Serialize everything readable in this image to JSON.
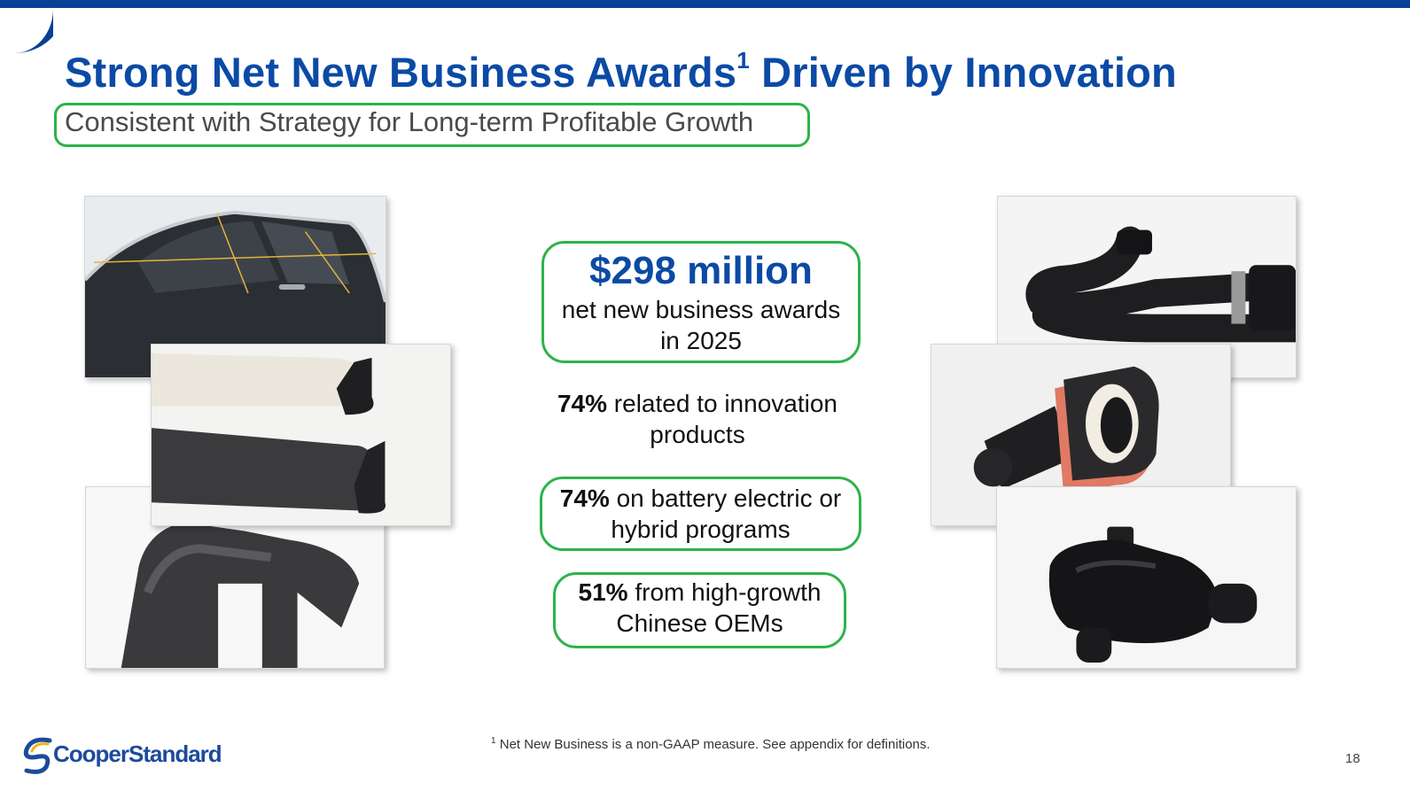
{
  "slide": {
    "title_main": "Strong Net New Business Awards",
    "title_sup": "1",
    "title_end": " Driven by Innovation",
    "subtitle": "Consistent with Strategy for Long-term Profitable Growth"
  },
  "stats": {
    "amount": "$298 million",
    "amount_desc_1": "net new business awards",
    "amount_desc_2": "in 2025",
    "innovation_pct": "74%",
    "innovation_text_1": " related to innovation",
    "innovation_text_2": "products",
    "battery_pct": "74%",
    "battery_text_1": " on battery electric or",
    "battery_text_2": "hybrid programs",
    "china_pct": "51%",
    "china_text_1": " from high-growth",
    "china_text_2": "Chinese OEMs"
  },
  "footer": {
    "footnote_sup": "1",
    "footnote": " Net New Business is a non-GAAP measure. See appendix for definitions.",
    "page_number": "18",
    "logo_text": "CooperStandard"
  },
  "colors": {
    "brand_blue": "#0b4aa5",
    "band_blue": "#0a3f97",
    "highlight_green": "#2db34a",
    "logo_gold": "#f2b21b"
  },
  "icons": {
    "logo": "cooper-standard-swoosh-icon"
  }
}
